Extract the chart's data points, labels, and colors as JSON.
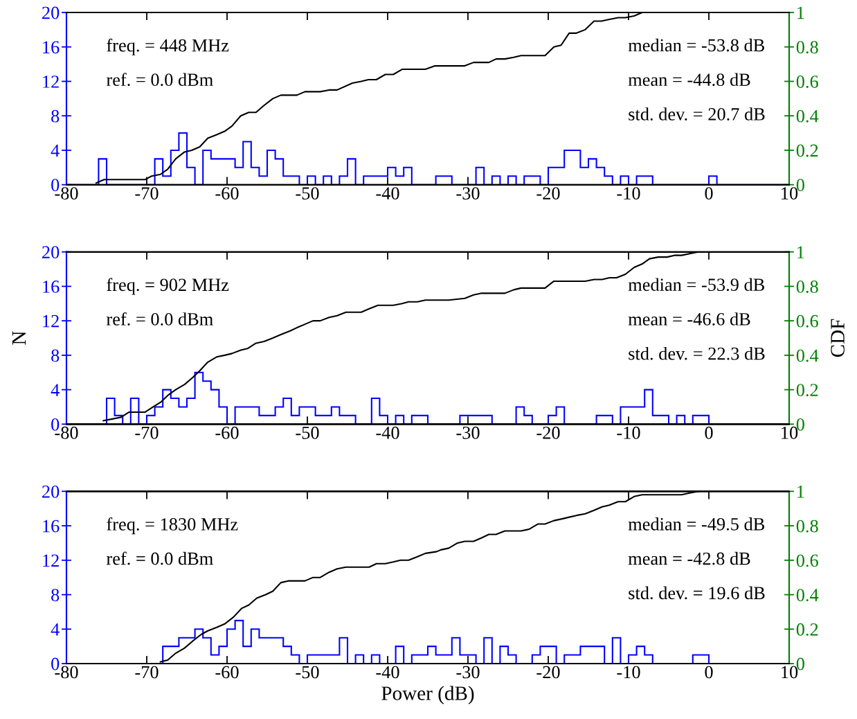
{
  "chart_data": [
    {
      "type": "histogram",
      "annotations": [
        "freq. = 448 MHz",
        "ref. = 0.0 dBm",
        "median = -53.8 dB",
        "mean = -44.8 dB",
        "std. dev. = 20.7 dB"
      ],
      "xlim": [
        -80,
        10
      ],
      "xticks": [
        -80,
        -70,
        -60,
        -50,
        -40,
        -30,
        -20,
        -10,
        0,
        10
      ],
      "ylim": [
        0,
        20
      ],
      "yticks": [
        0,
        4,
        8,
        12,
        16,
        20
      ],
      "y2lim": [
        0,
        1
      ],
      "y2ticks": [
        0,
        0.2,
        0.4,
        0.6,
        0.8,
        1
      ],
      "series": [
        {
          "color": "#0000ff",
          "bins": [
            -80,
            -79,
            -78,
            -77,
            -76,
            -75,
            -74,
            -73,
            -72,
            -71,
            -70,
            -69,
            -68,
            -67,
            -66,
            -65,
            -64,
            -63,
            -62,
            -61,
            -60,
            -59,
            -58,
            -57,
            -56,
            -55,
            -54,
            -53,
            -52,
            -51,
            -50,
            -49,
            -48,
            -47,
            -46,
            -45,
            -44,
            -43,
            -42,
            -41,
            -40,
            -39,
            -38,
            -37,
            -36,
            -35,
            -34,
            -33,
            -32,
            -31,
            -30,
            -29,
            -28,
            -27,
            -26,
            -25,
            -24,
            -23,
            -22,
            -21,
            -20,
            -19,
            -18,
            -17,
            -16,
            -15,
            -14,
            -13,
            -12,
            -11,
            -10,
            -9,
            -8,
            -7,
            -6,
            -5,
            -4,
            -3,
            -2,
            -1,
            0,
            1,
            2,
            3,
            4,
            5,
            6,
            7,
            8,
            9,
            10
          ],
          "values": [
            0,
            0,
            0,
            0,
            3,
            0,
            0,
            0,
            0,
            0,
            0,
            3,
            1,
            4,
            6,
            2,
            0,
            4,
            3,
            3,
            3,
            2,
            5,
            2,
            1,
            4,
            3,
            1,
            1,
            0,
            1,
            0,
            1,
            0,
            1,
            3,
            0,
            1,
            1,
            1,
            2,
            1,
            2,
            0,
            0,
            0,
            1,
            1,
            0,
            0,
            0,
            2,
            0,
            1,
            0,
            1,
            0,
            1,
            1,
            0,
            2,
            2,
            4,
            4,
            2,
            3,
            2,
            1,
            0,
            1,
            0,
            1,
            1,
            0,
            0,
            0,
            0,
            0,
            0,
            0,
            1,
            0,
            0,
            0,
            0,
            0,
            0,
            0,
            0,
            0
          ]
        },
        {
          "type": "line",
          "axis": "y2",
          "color": "#000000",
          "x": [
            -76.3,
            -75.3,
            -70.2,
            -69.4,
            -68.3,
            -67.4,
            -66.4,
            -65.3,
            -64.4,
            -63.4,
            -62.4,
            -61.3,
            -60.3,
            -59.4,
            -58.3,
            -57.3,
            -56.4,
            -55.4,
            -54.3,
            -53.3,
            -52.4,
            -51.3,
            -50.3,
            -48.4,
            -47.3,
            -46.3,
            -44.4,
            -43.3,
            -42.4,
            -41.4,
            -40.3,
            -39.3,
            -38.2,
            -35.3,
            -34.1,
            -33.4,
            -30.4,
            -29.3,
            -27.4,
            -26.5,
            -25.4,
            -24.3,
            -23.4,
            -22.4,
            -21.3,
            -20.4,
            -19.3,
            -18.4,
            -17.4,
            -16.5,
            -15.4,
            -14.3,
            -13.4,
            -12.4,
            -11.3,
            -10.4,
            -9.3,
            -8.3,
            -1.6,
            -0.7
          ],
          "values": [
            0.01,
            0.03,
            0.03,
            0.05,
            0.06,
            0.09,
            0.15,
            0.19,
            0.2,
            0.22,
            0.27,
            0.29,
            0.31,
            0.34,
            0.4,
            0.42,
            0.42,
            0.46,
            0.5,
            0.52,
            0.52,
            0.52,
            0.54,
            0.54,
            0.55,
            0.55,
            0.59,
            0.6,
            0.61,
            0.61,
            0.64,
            0.64,
            0.67,
            0.67,
            0.69,
            0.69,
            0.69,
            0.71,
            0.71,
            0.73,
            0.73,
            0.74,
            0.75,
            0.75,
            0.75,
            0.75,
            0.8,
            0.81,
            0.88,
            0.88,
            0.9,
            0.95,
            0.95,
            0.96,
            0.97,
            0.97,
            0.98,
            1.0,
            1.0,
            1.0
          ]
        }
      ]
    },
    {
      "type": "histogram",
      "annotations": [
        "freq. = 902 MHz",
        "ref. = 0.0 dBm",
        "median = -53.9 dB",
        "mean = -46.6 dB",
        "std. dev. = 22.3 dB"
      ],
      "ylabel": "N",
      "y2label": "CDF",
      "xlim": [
        -80,
        10
      ],
      "xticks": [
        -80,
        -70,
        -60,
        -50,
        -40,
        -30,
        -20,
        -10,
        0,
        10
      ],
      "ylim": [
        0,
        20
      ],
      "yticks": [
        0,
        4,
        8,
        12,
        16,
        20
      ],
      "y2lim": [
        0,
        1
      ],
      "y2ticks": [
        0,
        0.2,
        0.4,
        0.6,
        0.8,
        1
      ],
      "series": [
        {
          "color": "#0000ff",
          "bins": [
            -80,
            -79,
            -78,
            -77,
            -76,
            -75,
            -74,
            -73,
            -72,
            -71,
            -70,
            -69,
            -68,
            -67,
            -66,
            -65,
            -64,
            -63,
            -62,
            -61,
            -60,
            -59,
            -58,
            -57,
            -56,
            -55,
            -54,
            -53,
            -52,
            -51,
            -50,
            -49,
            -48,
            -47,
            -46,
            -45,
            -44,
            -43,
            -42,
            -41,
            -40,
            -39,
            -38,
            -37,
            -36,
            -35,
            -34,
            -33,
            -32,
            -31,
            -30,
            -29,
            -28,
            -27,
            -26,
            -25,
            -24,
            -23,
            -22,
            -21,
            -20,
            -19,
            -18,
            -17,
            -16,
            -15,
            -14,
            -13,
            -12,
            -11,
            -10,
            -9,
            -8,
            -7,
            -6,
            -5,
            -4,
            -3,
            -2,
            -1,
            0,
            1,
            2,
            3,
            4,
            5,
            6,
            7,
            8,
            9,
            10
          ],
          "values": [
            0,
            0,
            0,
            0,
            0,
            3,
            1,
            0,
            3,
            0,
            1,
            2,
            4,
            3,
            2,
            3,
            6,
            5,
            4,
            2,
            0,
            2,
            2,
            2,
            1,
            1,
            2,
            3,
            1,
            2,
            2,
            1,
            1,
            2,
            1,
            1,
            0,
            0,
            3,
            1,
            0,
            1,
            0,
            1,
            1,
            0,
            0,
            0,
            0,
            1,
            1,
            1,
            1,
            0,
            0,
            0,
            2,
            1,
            0,
            0,
            1,
            2,
            0,
            0,
            0,
            0,
            1,
            1,
            0,
            2,
            2,
            2,
            4,
            1,
            1,
            0,
            1,
            0,
            1,
            1,
            0,
            0,
            0,
            0,
            0,
            0,
            0,
            0,
            0,
            0
          ]
        },
        {
          "type": "line",
          "axis": "y2",
          "color": "#000000",
          "x": [
            -75.4,
            -74.3,
            -73.2,
            -72.2,
            -70.2,
            -69.2,
            -68.2,
            -67.3,
            -66.4,
            -65.3,
            -64.3,
            -63.4,
            -62.4,
            -61.3,
            -60.3,
            -59.4,
            -58.3,
            -57.4,
            -56.4,
            -55.4,
            -54.3,
            -53.3,
            -52.2,
            -51.3,
            -50.3,
            -49.3,
            -48.4,
            -47.3,
            -46.3,
            -45.2,
            -43.3,
            -42.3,
            -41.2,
            -39.3,
            -38.2,
            -37.4,
            -36.3,
            -35.3,
            -32.4,
            -30.4,
            -29.3,
            -28.3,
            -25.4,
            -24.3,
            -23.4,
            -20.4,
            -19.3,
            -15.4,
            -14.3,
            -13.3,
            -12.4,
            -11.5,
            -10.4,
            -9.3,
            -8.3,
            -7.4,
            -6.3,
            -5.2,
            -4.3,
            -3.4,
            -2.4,
            -1.3
          ],
          "values": [
            0.02,
            0.03,
            0.04,
            0.07,
            0.07,
            0.1,
            0.13,
            0.17,
            0.2,
            0.23,
            0.27,
            0.31,
            0.36,
            0.39,
            0.4,
            0.41,
            0.43,
            0.44,
            0.47,
            0.48,
            0.5,
            0.52,
            0.54,
            0.56,
            0.58,
            0.6,
            0.6,
            0.62,
            0.63,
            0.65,
            0.65,
            0.67,
            0.69,
            0.69,
            0.7,
            0.71,
            0.71,
            0.72,
            0.72,
            0.73,
            0.75,
            0.76,
            0.76,
            0.78,
            0.79,
            0.79,
            0.83,
            0.83,
            0.84,
            0.84,
            0.85,
            0.85,
            0.87,
            0.91,
            0.93,
            0.96,
            0.97,
            0.97,
            0.98,
            0.98,
            0.99,
            1.0
          ]
        }
      ]
    },
    {
      "type": "histogram",
      "annotations": [
        "freq. = 1830 MHz",
        "ref. = 0.0 dBm",
        "median = -49.5 dB",
        "mean = -42.8 dB",
        "std. dev. = 19.6 dB"
      ],
      "xlabel": "Power (dB)",
      "xlim": [
        -80,
        10
      ],
      "xticks": [
        -80,
        -70,
        -60,
        -50,
        -40,
        -30,
        -20,
        -10,
        0,
        10
      ],
      "ylim": [
        0,
        20
      ],
      "yticks": [
        0,
        4,
        8,
        12,
        16,
        20
      ],
      "y2lim": [
        0,
        1
      ],
      "y2ticks": [
        0,
        0.2,
        0.4,
        0.6,
        0.8,
        1
      ],
      "series": [
        {
          "color": "#0000ff",
          "bins": [
            -80,
            -79,
            -78,
            -77,
            -76,
            -75,
            -74,
            -73,
            -72,
            -71,
            -70,
            -69,
            -68,
            -67,
            -66,
            -65,
            -64,
            -63,
            -62,
            -61,
            -60,
            -59,
            -58,
            -57,
            -56,
            -55,
            -54,
            -53,
            -52,
            -51,
            -50,
            -49,
            -48,
            -47,
            -46,
            -45,
            -44,
            -43,
            -42,
            -41,
            -40,
            -39,
            -38,
            -37,
            -36,
            -35,
            -34,
            -33,
            -32,
            -31,
            -30,
            -29,
            -28,
            -27,
            -26,
            -25,
            -24,
            -23,
            -22,
            -21,
            -20,
            -19,
            -18,
            -17,
            -16,
            -15,
            -14,
            -13,
            -12,
            -11,
            -10,
            -9,
            -8,
            -7,
            -6,
            -5,
            -4,
            -3,
            -2,
            -1,
            0,
            1,
            2,
            3,
            4,
            5,
            6,
            7,
            8,
            9,
            10
          ],
          "values": [
            0,
            0,
            0,
            0,
            0,
            0,
            0,
            0,
            0,
            0,
            0,
            0,
            2,
            2,
            3,
            3,
            4,
            3,
            1,
            2,
            4,
            5,
            2,
            4,
            3,
            3,
            3,
            2,
            1,
            0,
            1,
            1,
            1,
            1,
            3,
            0,
            1,
            0,
            1,
            0,
            0,
            2,
            0,
            1,
            1,
            2,
            1,
            1,
            3,
            1,
            1,
            0,
            3,
            0,
            2,
            1,
            0,
            0,
            1,
            2,
            2,
            0,
            1,
            1,
            2,
            2,
            2,
            0,
            3,
            0,
            1,
            2,
            1,
            0,
            0,
            0,
            0,
            0,
            1,
            1,
            0,
            0,
            0,
            0,
            0,
            0,
            0,
            0,
            0,
            0
          ]
        },
        {
          "type": "line",
          "axis": "y2",
          "color": "#000000",
          "x": [
            -68.3,
            -67.4,
            -66.4,
            -65.3,
            -64.3,
            -63.2,
            -62.4,
            -61.3,
            -60.3,
            -59.2,
            -58.2,
            -57.3,
            -56.3,
            -55.2,
            -54.3,
            -53.3,
            -52.4,
            -50.3,
            -49.3,
            -48.4,
            -47.3,
            -46.3,
            -45.2,
            -44.4,
            -42.3,
            -41.4,
            -40.3,
            -39.3,
            -38.4,
            -37.4,
            -36.3,
            -35.3,
            -33.9,
            -33.4,
            -32.4,
            -31.3,
            -30.4,
            -29.3,
            -28.3,
            -27.4,
            -26.5,
            -25.4,
            -23.4,
            -22.4,
            -21.3,
            -20.4,
            -19.3,
            -18.3,
            -17.4,
            -16.5,
            -15.4,
            -14.3,
            -13.3,
            -12.4,
            -11.3,
            -10.4,
            -9.3,
            -8.3,
            -3.4,
            -2.4,
            -1.3
          ],
          "values": [
            0.01,
            0.02,
            0.06,
            0.09,
            0.13,
            0.17,
            0.19,
            0.21,
            0.23,
            0.27,
            0.32,
            0.34,
            0.38,
            0.4,
            0.42,
            0.47,
            0.48,
            0.48,
            0.5,
            0.5,
            0.53,
            0.55,
            0.56,
            0.56,
            0.56,
            0.58,
            0.58,
            0.59,
            0.6,
            0.6,
            0.62,
            0.64,
            0.65,
            0.66,
            0.67,
            0.7,
            0.71,
            0.71,
            0.73,
            0.75,
            0.75,
            0.77,
            0.77,
            0.78,
            0.81,
            0.81,
            0.83,
            0.84,
            0.85,
            0.86,
            0.87,
            0.89,
            0.91,
            0.92,
            0.94,
            0.94,
            0.97,
            0.98,
            0.98,
            0.99,
            1.0
          ]
        }
      ]
    }
  ]
}
